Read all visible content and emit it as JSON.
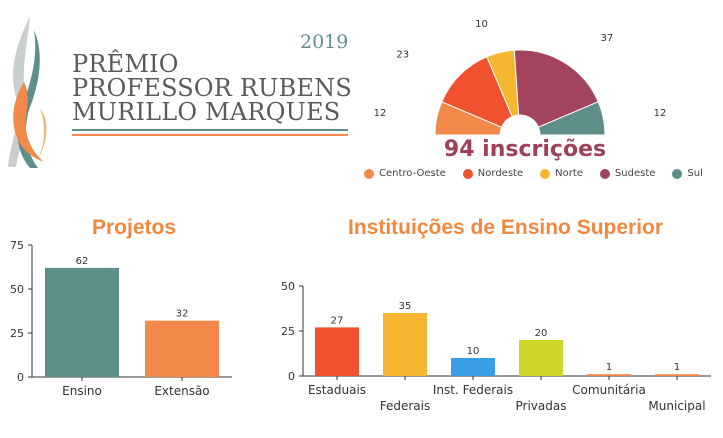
{
  "logo": {
    "year": "2019",
    "lines": [
      "PRÊMIO",
      "PROFESSOR RUBENS",
      "MURILLO MARQUES"
    ]
  },
  "colors": {
    "Centro-Oeste": "#f2884a",
    "Nordeste": "#f0512f",
    "Norte": "#f5b730",
    "Sudeste": "#a3435e",
    "Sul": "#5e8e8a",
    "teal": "#5e8e8a",
    "orange": "#f2884a",
    "red": "#f0512f",
    "yellow": "#f5b730",
    "blue": "#3a9ee6",
    "lime": "#cfd62a",
    "title_orange": "#f2883f",
    "total_purple": "#a0415a"
  },
  "pie": {
    "total_label": "94 inscrições"
  },
  "chart_data": [
    {
      "type": "pie",
      "subtype": "half-donut",
      "title": "",
      "total_label": "94 inscrições",
      "categories": [
        "Centro-Oeste",
        "Nordeste",
        "Norte",
        "Sudeste",
        "Sul"
      ],
      "values": [
        12,
        23,
        10,
        37,
        12
      ],
      "legend": [
        "Centro-Oeste",
        "Nordeste",
        "Norte",
        "Sudeste",
        "Sul"
      ],
      "legend_position": "bottom"
    },
    {
      "type": "bar",
      "title": "Projetos",
      "categories": [
        "Ensino",
        "Extensão"
      ],
      "values": [
        62,
        32
      ],
      "ylim": [
        0,
        75
      ],
      "yticks": [
        0,
        25,
        50,
        75
      ],
      "xlabel": "",
      "ylabel": "",
      "grid": false
    },
    {
      "type": "bar",
      "title": "Instituições de Ensino Superior",
      "categories": [
        "Estaduais",
        "Federais",
        "Inst. Federais",
        "Privadas",
        "Comunitária",
        "Municipal"
      ],
      "values": [
        27,
        35,
        10,
        20,
        1,
        1
      ],
      "ylim": [
        0,
        50
      ],
      "yticks": [
        0,
        25,
        50
      ],
      "xlabel": "",
      "ylabel": "",
      "grid": false
    }
  ]
}
